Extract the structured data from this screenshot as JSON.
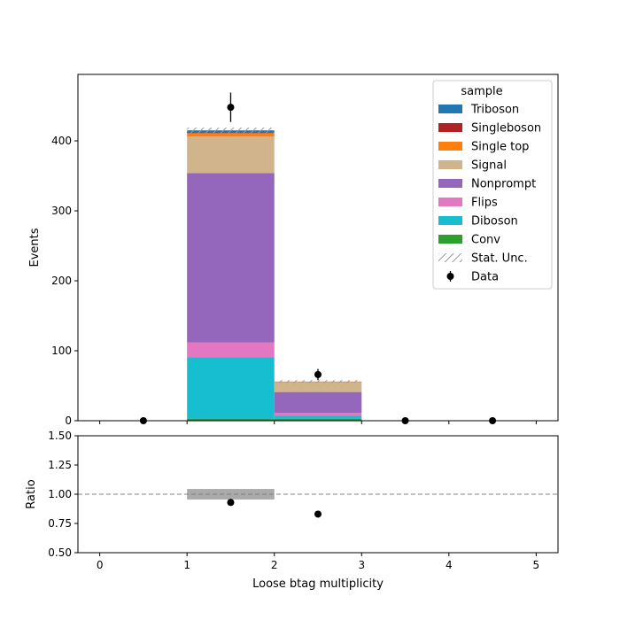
{
  "chart_data": {
    "type": "bar",
    "stacked": true,
    "xlabel": "Loose btag multiplicity",
    "ylabel": "Events",
    "ratio_ylabel": "Ratio",
    "x_bin_edges": [
      0,
      1,
      2,
      3,
      4,
      5
    ],
    "xlim": [
      -0.25,
      5.25
    ],
    "ylim": [
      0,
      495
    ],
    "ratio_ylim": [
      0.5,
      1.5
    ],
    "x_ticks": [
      "0",
      "1",
      "2",
      "3",
      "4",
      "5"
    ],
    "y_ticks": [
      "0",
      "100",
      "200",
      "300",
      "400"
    ],
    "ratio_y_ticks": [
      "0.50",
      "0.75",
      "1.00",
      "1.25",
      "1.50"
    ],
    "legend_title": "sample",
    "legend_placement": "top-right",
    "series": [
      {
        "name": "Conv",
        "color": "#2ca02c",
        "values": [
          0,
          3,
          3,
          0,
          0
        ]
      },
      {
        "name": "Diboson",
        "color": "#17becf",
        "values": [
          0,
          88,
          4,
          0,
          0
        ]
      },
      {
        "name": "Flips",
        "color": "#e377c2",
        "values": [
          0,
          21,
          4,
          0,
          0
        ]
      },
      {
        "name": "Nonprompt",
        "color": "#9467bd",
        "values": [
          0,
          242,
          30,
          0,
          0
        ]
      },
      {
        "name": "Signal",
        "color": "#d2b48c",
        "values": [
          0,
          52,
          14,
          0,
          0
        ]
      },
      {
        "name": "Single top",
        "color": "#ff7f0e",
        "values": [
          0,
          5,
          1,
          0,
          0
        ]
      },
      {
        "name": "Singleboson",
        "color": "#b22222",
        "values": [
          0,
          1,
          0,
          0,
          0
        ]
      },
      {
        "name": "Triboson",
        "color": "#1f77b4",
        "values": [
          0,
          3,
          0,
          0,
          0
        ]
      }
    ],
    "legend_entries": [
      {
        "label": "Triboson",
        "kind": "patch",
        "color": "#1f77b4"
      },
      {
        "label": "Singleboson",
        "kind": "patch",
        "color": "#b22222"
      },
      {
        "label": "Single top",
        "kind": "patch",
        "color": "#ff7f0e"
      },
      {
        "label": "Signal",
        "kind": "patch",
        "color": "#d2b48c"
      },
      {
        "label": "Nonprompt",
        "kind": "patch",
        "color": "#9467bd"
      },
      {
        "label": "Flips",
        "kind": "patch",
        "color": "#e377c2"
      },
      {
        "label": "Diboson",
        "kind": "patch",
        "color": "#17becf"
      },
      {
        "label": "Conv",
        "kind": "patch",
        "color": "#2ca02c"
      },
      {
        "label": "Stat. Unc.",
        "kind": "hatch",
        "color": "#808080"
      },
      {
        "label": "Data",
        "kind": "errorbar",
        "color": "#000000"
      }
    ],
    "stat_unc": [
      0,
      4,
      2,
      0,
      0
    ],
    "data": {
      "x": [
        0.5,
        1.5,
        2.5,
        3.5,
        4.5
      ],
      "y": [
        0,
        448,
        66,
        0,
        0
      ],
      "yerr": [
        0,
        21,
        8,
        0,
        0
      ]
    },
    "ratio": {
      "points": [
        {
          "x": 1.5,
          "y": 0.93
        },
        {
          "x": 2.5,
          "y": 0.83
        }
      ],
      "reference_line": 1.0,
      "unc_band": {
        "x0": 1,
        "x1": 2,
        "y0": 0.955,
        "y1": 1.045,
        "color": "#aaaaaa"
      }
    }
  }
}
